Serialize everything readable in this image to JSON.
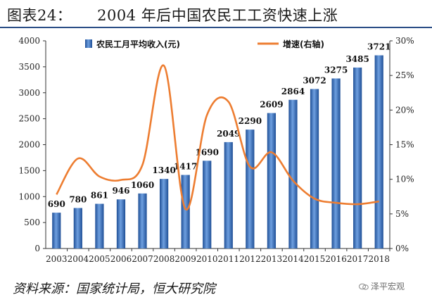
{
  "title": "图表24：     2004 年后中国农民工工资快速上涨",
  "source": "资料来源：国家统计局，恒大研究院",
  "watermark": "泽平宏观",
  "chart_data": {
    "type": "bar",
    "categories": [
      "2003",
      "2004",
      "2005",
      "2006",
      "2007",
      "2008",
      "2009",
      "2010",
      "2011",
      "2012",
      "2013",
      "2014",
      "2015",
      "2016",
      "2017",
      "2018"
    ],
    "series": [
      {
        "name": "农民工月平均收入(元)",
        "type": "bar",
        "axis": "left",
        "values": [
          690,
          780,
          861,
          946,
          1060,
          1340,
          1417,
          1690,
          2049,
          2290,
          2609,
          2864,
          3072,
          3275,
          3485,
          3721
        ],
        "color": "#2e68b8"
      },
      {
        "name": "增速(右轴)",
        "type": "line",
        "axis": "right",
        "values": [
          7.8,
          13.0,
          10.4,
          9.9,
          12.1,
          26.4,
          5.7,
          19.3,
          21.2,
          11.8,
          13.9,
          9.8,
          7.2,
          6.6,
          6.4,
          6.8
        ],
        "color": "#ed7d31"
      }
    ],
    "y_left": {
      "min": 0,
      "max": 4000,
      "step": 500,
      "ticks": [
        "0",
        "500",
        "1000",
        "1500",
        "2000",
        "2500",
        "3000",
        "3500",
        "4000"
      ]
    },
    "y_right": {
      "min": 0,
      "max": 30,
      "step": 5,
      "ticks": [
        "0%",
        "5%",
        "10%",
        "15%",
        "20%",
        "25%",
        "30%"
      ]
    },
    "data_labels": [
      "690",
      "780",
      "861",
      "946",
      "1060",
      "1340",
      "1417",
      "1690",
      "2049",
      "2290",
      "2609",
      "2864",
      "3072",
      "3275",
      "3485",
      "3721"
    ],
    "legend": {
      "position": "top",
      "items": [
        {
          "label": "农民工月平均收入(元)",
          "kind": "bar"
        },
        {
          "label": "增速(右轴)",
          "kind": "line"
        }
      ]
    },
    "grid": false
  }
}
